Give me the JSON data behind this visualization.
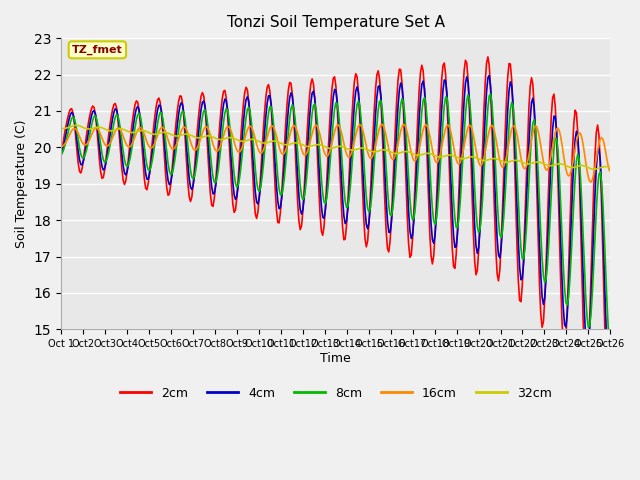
{
  "title": "Tonzi Soil Temperature Set A",
  "xlabel": "Time",
  "ylabel": "Soil Temperature (C)",
  "ylim": [
    15.0,
    23.0
  ],
  "yticks": [
    15.0,
    16.0,
    17.0,
    18.0,
    19.0,
    20.0,
    21.0,
    22.0,
    23.0
  ],
  "x_labels": [
    "Oct 1",
    "Oct 2",
    "Oct 3",
    "Oct 4",
    "Oct 5",
    "Oct 6",
    "Oct 7",
    "Oct 8",
    "Oct 9",
    "Oct 10",
    "Oct 11",
    "Oct 12",
    "Oct 13",
    "Oct 14",
    "Oct 15",
    "Oct 16",
    "Oct 17",
    "Oct 18",
    "Oct 19",
    "Oct 20",
    "Oct 21",
    "Oct 22",
    "Oct 23",
    "Oct 24",
    "Oct 25",
    "Oct 26"
  ],
  "annotation": "TZ_fmet",
  "annotation_color": "#880000",
  "annotation_bg": "#ffffcc",
  "annotation_edge": "#cccc00",
  "bg_color": "#e8e8e8",
  "fig_bg_color": "#f0f0f0",
  "legend_labels": [
    "2cm",
    "4cm",
    "8cm",
    "16cm",
    "32cm"
  ],
  "legend_colors": [
    "#ff0000",
    "#0000cc",
    "#00bb00",
    "#ff8800",
    "#cccc00"
  ],
  "line_width": 1.2
}
